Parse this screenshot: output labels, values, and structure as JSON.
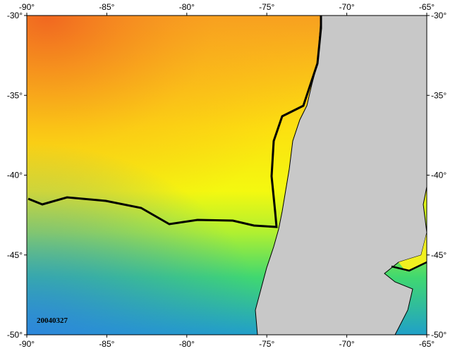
{
  "map": {
    "date_label": "20040327",
    "lon_ticks": [
      {
        "value": -90,
        "label": "-90°"
      },
      {
        "value": -85,
        "label": "-85°"
      },
      {
        "value": -80,
        "label": "-80°"
      },
      {
        "value": -75,
        "label": "-75°"
      },
      {
        "value": -70,
        "label": "-70°"
      },
      {
        "value": -65,
        "label": "-65°"
      }
    ],
    "lat_ticks": [
      {
        "value": -30,
        "label": "-30°"
      },
      {
        "value": -35,
        "label": "-35°"
      },
      {
        "value": -40,
        "label": "-40°"
      },
      {
        "value": -45,
        "label": "-45°"
      },
      {
        "value": -50,
        "label": "-50°"
      }
    ],
    "lon_range": [
      -90,
      -65
    ],
    "lat_range": [
      -30,
      -50
    ]
  }
}
